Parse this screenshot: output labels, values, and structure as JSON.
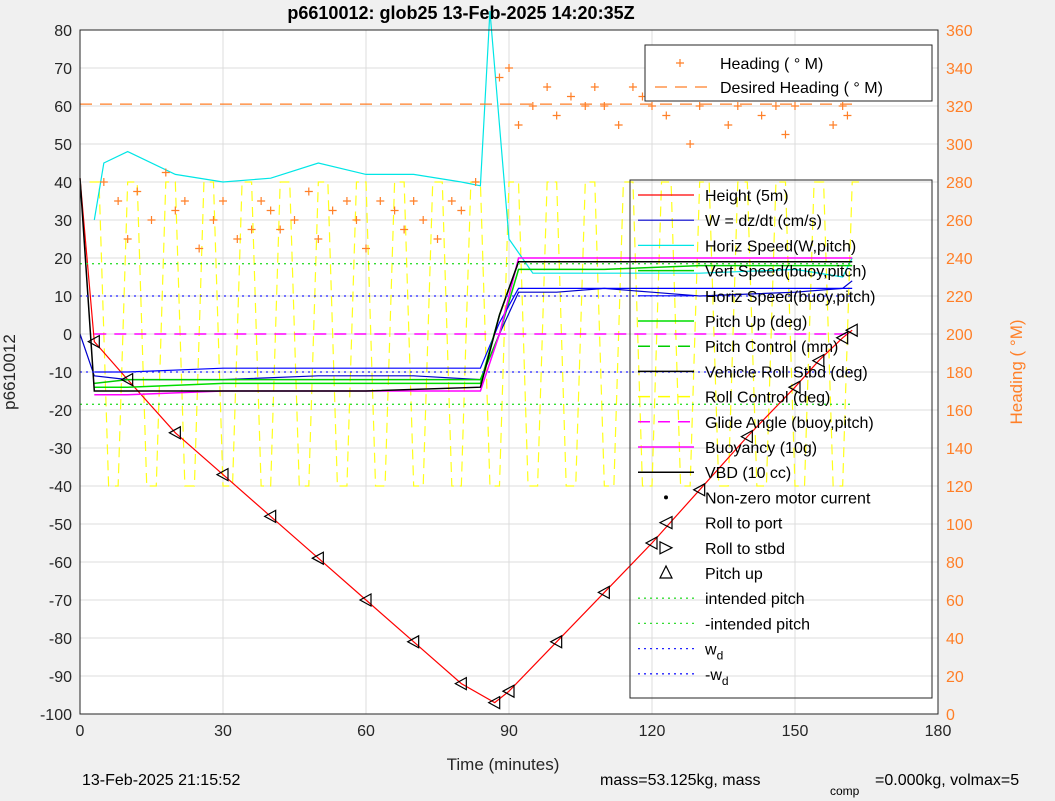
{
  "figure": {
    "title": "p6610012: glob25 13-Feb-2025 14:20:35Z",
    "footer_date": "13-Feb-2025 21:15:52",
    "footer_mass": "mass=53.125kg, mass",
    "footer_comp_sub": "comp",
    "footer_volmax": "=0.000kg, volmax=5"
  },
  "colors": {
    "height": "#ff0000",
    "w": "#0000cc",
    "horiz_w": "#00e6e6",
    "vert_buoy": "#00cc00",
    "horiz_buoy": "#0000ff",
    "pitch_up": "#00dd00",
    "pitch_ctrl": "#00cc00",
    "roll": "#ffff00",
    "glide": "#ff00ff",
    "buoy": "#ff00ff",
    "vbd": "#000000",
    "heading": "#ff7f27",
    "intended": "#33dd33",
    "wd": "#2222ff"
  },
  "chart_data": {
    "type": "line",
    "title": "p6610012: glob25 13-Feb-2025 14:20:35Z",
    "xlabel": "Time (minutes)",
    "ylabel": "p6610012",
    "y2label": "Heading (  °M)",
    "xlim": [
      0,
      180
    ],
    "ylim": [
      -100,
      80
    ],
    "y2lim": [
      0,
      360
    ],
    "xticks": [
      0,
      30,
      60,
      90,
      120,
      150,
      180
    ],
    "yticks": [
      -100,
      -90,
      -80,
      -70,
      -60,
      -50,
      -40,
      -30,
      -20,
      -10,
      0,
      10,
      20,
      30,
      40,
      50,
      60,
      70,
      80
    ],
    "y2ticks": [
      0,
      20,
      40,
      60,
      80,
      100,
      120,
      140,
      160,
      180,
      200,
      220,
      240,
      260,
      280,
      300,
      320,
      340,
      360
    ],
    "grid": true,
    "heading_legend": [
      "Heading (  ° M)",
      "Desired Heading (    ° M)"
    ],
    "legend": [
      "Height (5m)",
      "W = dz/dt (cm/s)",
      "Horiz Speed(W,pitch)",
      "Vert Speed(buoy,pitch)",
      "Horiz Speed(buoy,pitch)",
      "Pitch Up (deg)",
      "Pitch Control (mm)",
      "Vehicle Roll Stbd (deg)",
      "Roll Control (deg)",
      "Glide Angle (buoy,pitch)",
      "Buoyancy (10g)",
      "VBD (10 cc)",
      "Non-zero motor current",
      "Roll to port",
      "Roll to stbd",
      "Pitch up",
      "intended pitch",
      "-intended pitch"
    ],
    "legend_wd": [
      "w",
      "-w"
    ],
    "legend_wd_sub": "d",
    "legend_placement": "right",
    "heading_legend_placement": "top-right",
    "series": [
      {
        "name": "Height (5m)",
        "x": [
          0,
          3,
          10,
          20,
          30,
          40,
          50,
          60,
          70,
          80,
          87,
          90,
          100,
          110,
          120,
          130,
          140,
          150,
          155,
          160,
          162
        ],
        "y": [
          41,
          -2,
          -12,
          -26,
          -37,
          -48,
          -59,
          -70,
          -81,
          -92,
          -97,
          -94,
          -81,
          -68,
          -55,
          -41,
          -27,
          -14,
          -7,
          -1,
          1
        ]
      },
      {
        "name": "W = dz/dt (cm/s)",
        "x": [
          0,
          3,
          10,
          30,
          50,
          70,
          84,
          88,
          92,
          100,
          110,
          120,
          130,
          150,
          160,
          162
        ],
        "y": [
          0,
          -11,
          -12,
          -12,
          -11,
          -11,
          -12,
          0,
          11,
          11,
          12,
          11,
          10,
          11,
          12,
          14
        ]
      },
      {
        "name": "Horiz Speed(W,pitch)",
        "x": [
          3,
          5,
          10,
          20,
          30,
          40,
          50,
          60,
          70,
          80,
          84,
          86,
          90,
          95,
          110,
          130,
          150,
          160,
          162
        ],
        "y": [
          30,
          45,
          48,
          42,
          40,
          41,
          45,
          42,
          42,
          40,
          39,
          85,
          25,
          16,
          16,
          16,
          17,
          15,
          20
        ]
      },
      {
        "name": "Vert Speed(buoy,pitch)",
        "x": [
          3,
          10,
          30,
          50,
          70,
          84,
          88,
          92,
          110,
          130,
          150,
          162
        ],
        "y": [
          -13,
          -12,
          -12,
          -12,
          -12,
          -12,
          0,
          17,
          17,
          18,
          18,
          18
        ]
      },
      {
        "name": "Horiz Speed(buoy,pitch)",
        "x": [
          3,
          10,
          30,
          50,
          70,
          84,
          88,
          92,
          110,
          130,
          150,
          162
        ],
        "y": [
          -10,
          -10,
          -9,
          -9,
          -9,
          -9,
          3,
          12,
          12,
          12,
          12,
          12
        ]
      },
      {
        "name": "Pitch Up (deg)",
        "x": [
          3,
          10,
          30,
          50,
          70,
          84,
          88,
          92,
          110,
          130,
          150,
          162
        ],
        "y": [
          -14,
          -14,
          -13,
          -13,
          -13,
          -13,
          5,
          19,
          19,
          19,
          19,
          19
        ]
      },
      {
        "name": "Glide Angle (buoy,pitch)",
        "x": [
          3,
          30,
          60,
          84,
          92,
          120,
          150,
          162
        ],
        "y": [
          0,
          0,
          0,
          0,
          0,
          0,
          0,
          0
        ]
      },
      {
        "name": "Buoyancy (10g)",
        "x": [
          3,
          10,
          30,
          60,
          84,
          88,
          92,
          120,
          150,
          162
        ],
        "y": [
          -16,
          -16,
          -15,
          -15,
          -15,
          0,
          20,
          20,
          20,
          20
        ]
      },
      {
        "name": "VBD (10 cc)",
        "x": [
          0,
          3,
          10,
          30,
          60,
          84,
          88,
          92,
          120,
          150,
          162
        ],
        "y": [
          41,
          -15,
          -15,
          -15,
          -15,
          -14,
          5,
          19,
          19,
          19,
          19
        ]
      },
      {
        "name": "intended pitch",
        "x": [
          0,
          162
        ],
        "y": [
          18.5,
          18.5
        ]
      },
      {
        "name": "-intended pitch",
        "x": [
          0,
          162
        ],
        "y": [
          -18.5,
          -18.5
        ]
      },
      {
        "name": "w",
        "x": [
          0,
          162
        ],
        "y": [
          10,
          10
        ]
      },
      {
        "name": "-w",
        "x": [
          0,
          162
        ],
        "y": [
          -10,
          -10
        ]
      }
    ],
    "heading_points": {
      "name": "Heading (  ° M)",
      "x": [
        5,
        8,
        10,
        12,
        15,
        18,
        20,
        22,
        25,
        28,
        30,
        33,
        36,
        38,
        40,
        42,
        45,
        48,
        50,
        53,
        56,
        58,
        60,
        63,
        66,
        68,
        70,
        72,
        75,
        78,
        80,
        83,
        88,
        90,
        92,
        95,
        98,
        100,
        103,
        106,
        108,
        110,
        113,
        116,
        118,
        120,
        123,
        126,
        128,
        130,
        133,
        136,
        138,
        140,
        143,
        146,
        148,
        150,
        153,
        156,
        158,
        160,
        161
      ],
      "y": [
        280,
        270,
        250,
        275,
        260,
        285,
        265,
        270,
        245,
        260,
        270,
        250,
        255,
        270,
        265,
        255,
        260,
        275,
        250,
        265,
        270,
        260,
        245,
        270,
        265,
        255,
        270,
        260,
        250,
        270,
        265,
        280,
        335,
        340,
        310,
        320,
        330,
        315,
        325,
        320,
        330,
        320,
        310,
        330,
        325,
        320,
        315,
        330,
        300,
        320,
        325,
        310,
        320,
        330,
        315,
        320,
        305,
        320,
        330,
        325,
        310,
        320,
        315
      ]
    },
    "desired_heading": {
      "name": "Desired Heading (    ° M)",
      "x": [
        0,
        162
      ],
      "y": [
        321,
        321
      ]
    }
  }
}
